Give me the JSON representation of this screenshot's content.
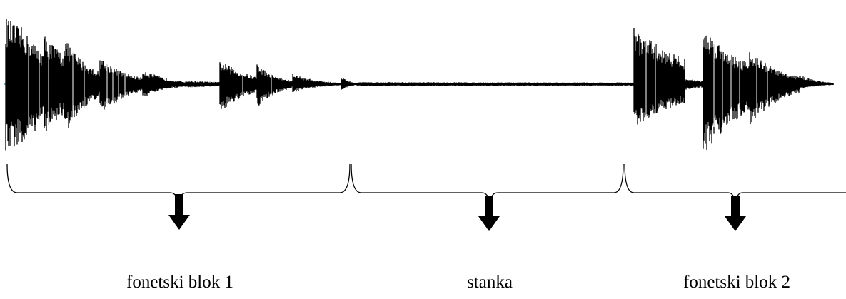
{
  "segments": [
    {
      "id": "block1",
      "label": "fonetski blok 1"
    },
    {
      "id": "pause",
      "label": "stanka"
    },
    {
      "id": "block2",
      "label": "fonetski blok 2"
    }
  ],
  "colors": {
    "waveform": "#000000",
    "baseline": "#4a8fb0",
    "bracket": "#000000",
    "arrow": "#000000"
  },
  "waveform": {
    "description_icon": "waveform-icon"
  }
}
